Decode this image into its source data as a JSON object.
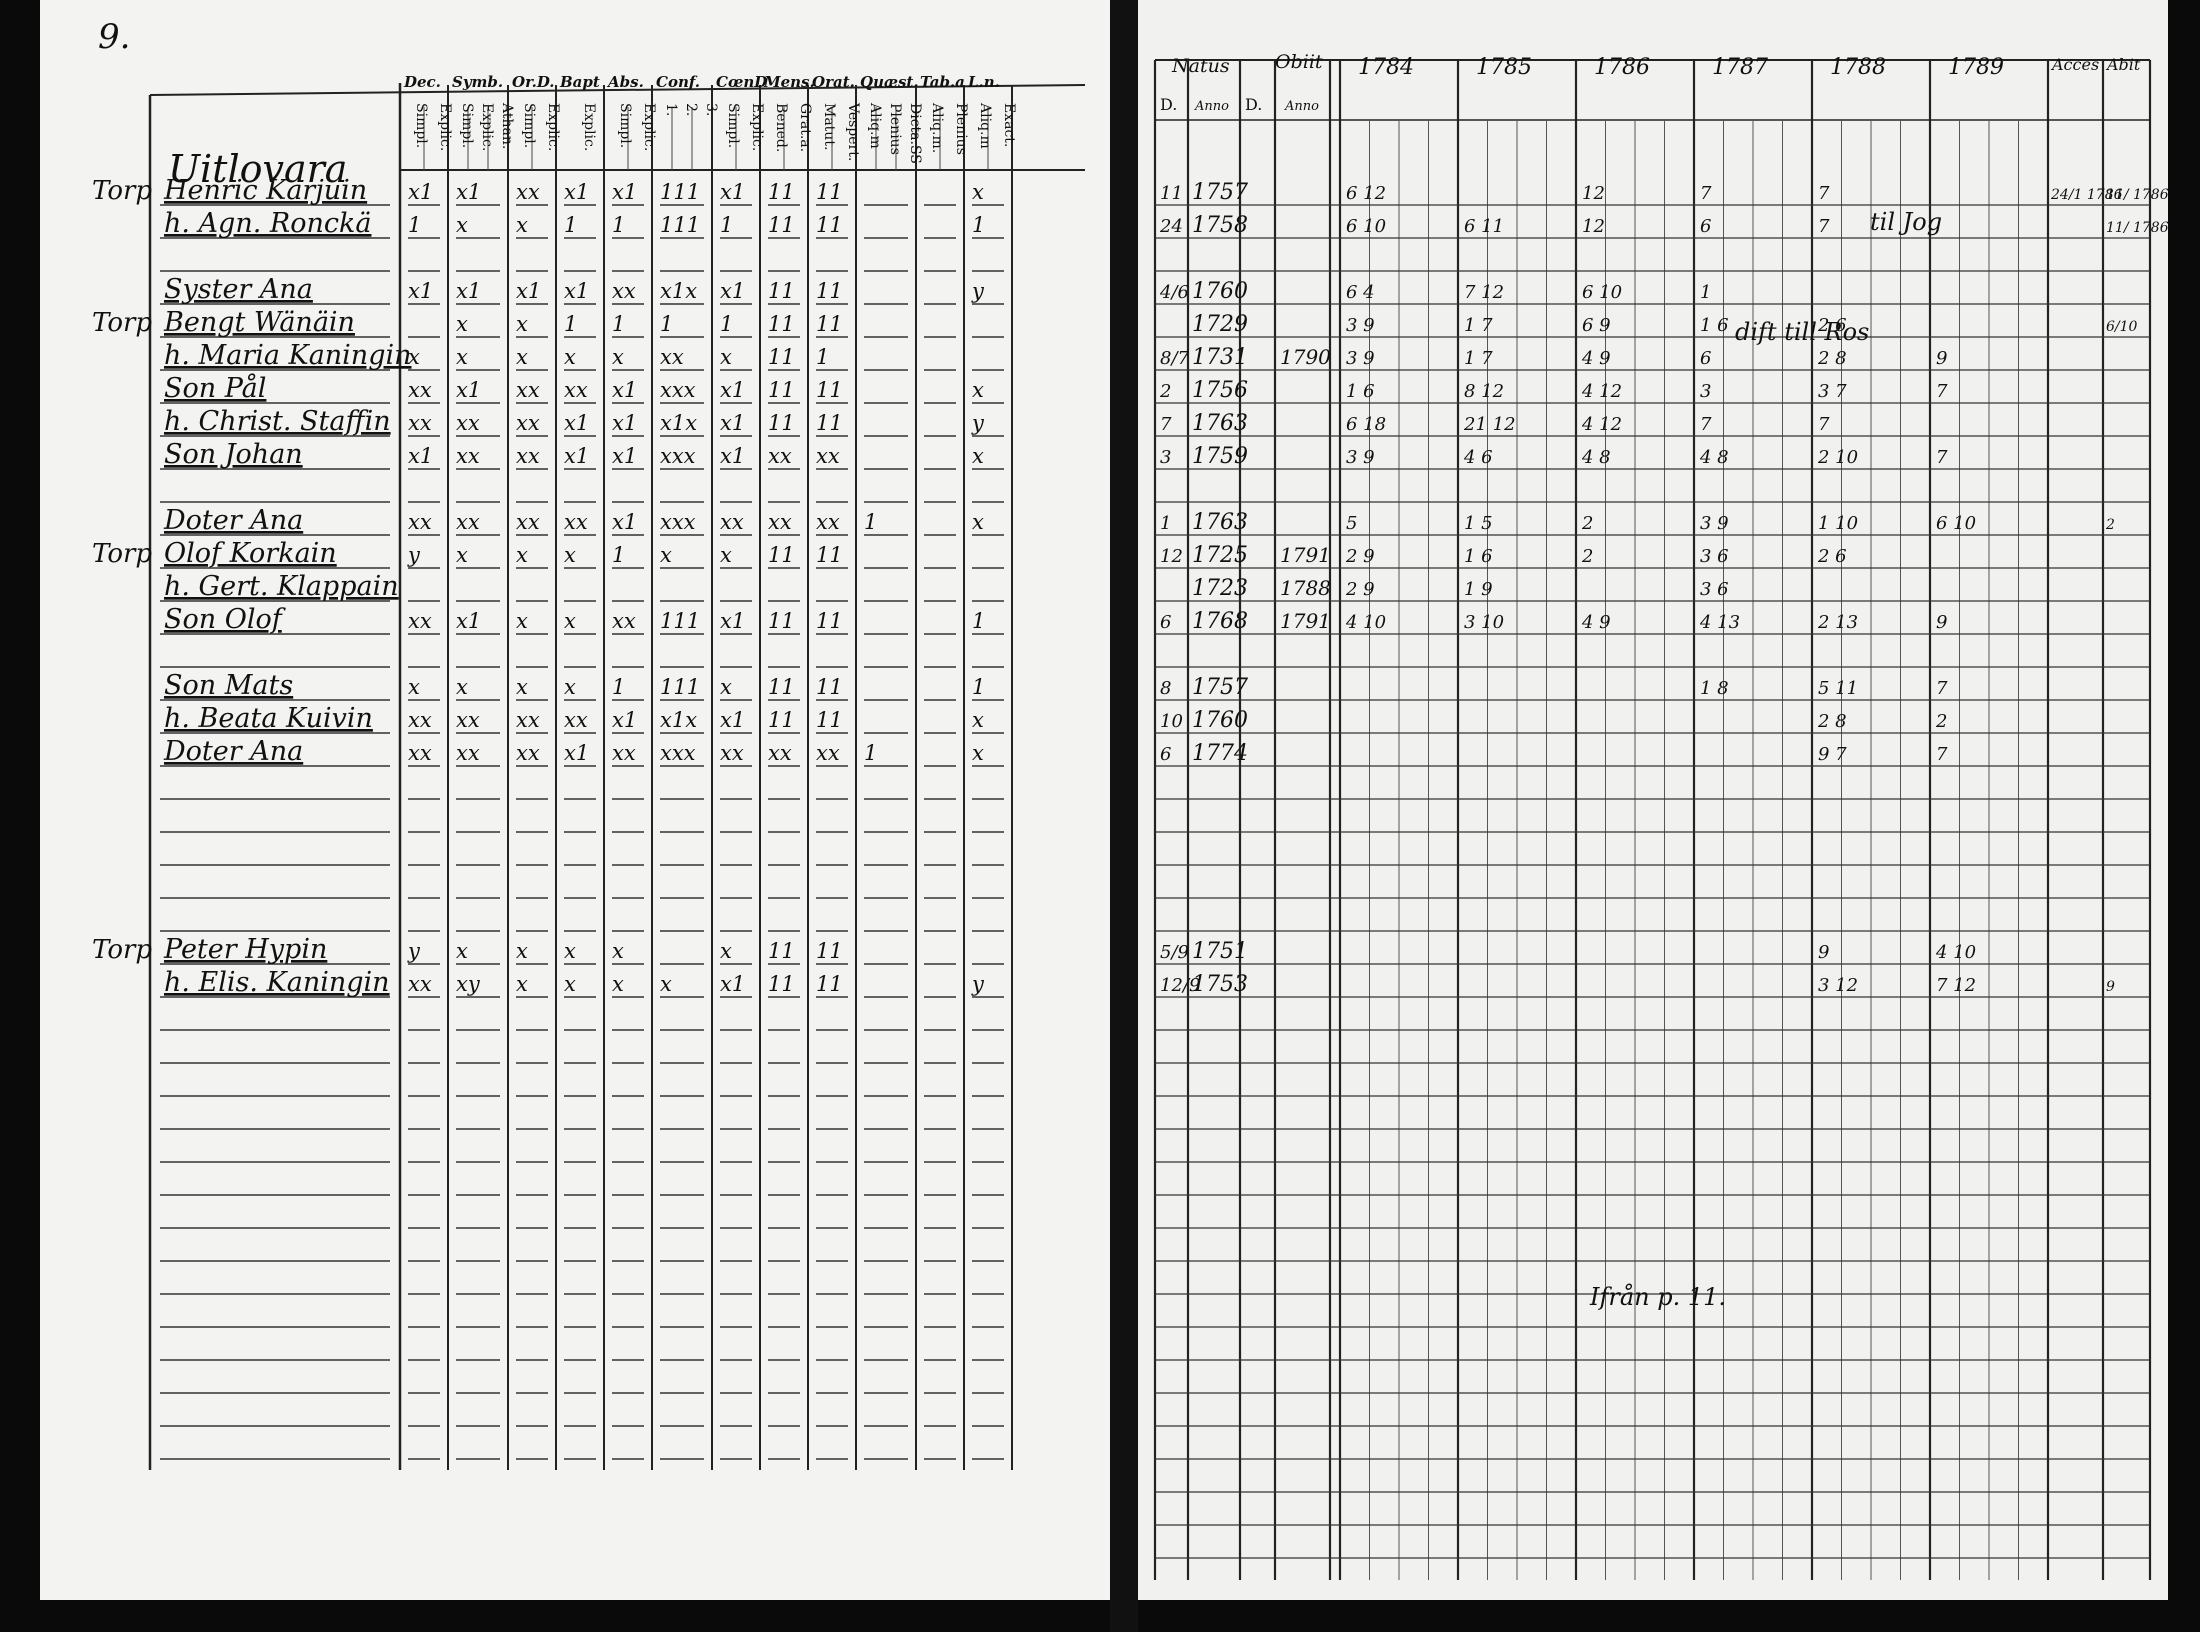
{
  "left_page": {
    "page_number": "9.",
    "village": "Uitlovara",
    "column_headers": [
      {
        "group": "Dec.",
        "subs": [
          "Simpl.",
          "Explic."
        ]
      },
      {
        "group": "Symb.",
        "subs": [
          "Simpl.",
          "Explic.",
          "Athan."
        ]
      },
      {
        "group": "Or.D.",
        "subs": [
          "Simpl.",
          "Explic."
        ]
      },
      {
        "group": "Bapt",
        "subs": [
          "Explic."
        ]
      },
      {
        "group": "Abs.",
        "subs": [
          "Simpl.",
          "Explic."
        ]
      },
      {
        "group": "Conf.",
        "subs": [
          "1.",
          "2.",
          "3."
        ]
      },
      {
        "group": "CœnD",
        "subs": [
          "Simpl.",
          "Explic."
        ]
      },
      {
        "group": "Mens.",
        "subs": [
          "Bened.",
          "Grat.a."
        ]
      },
      {
        "group": "Orat.",
        "subs": [
          "Matut.",
          "Vespert."
        ]
      },
      {
        "group": "Quæst.",
        "subs": [
          "Aliq.m",
          "Plenius",
          "Dicta.SS"
        ]
      },
      {
        "group": "Tab.a",
        "subs": [
          "Aliq.m.",
          "Plenius"
        ]
      },
      {
        "group": "L.n.",
        "subs": [
          "Aliq.m",
          "Exact."
        ]
      }
    ],
    "entries": [
      {
        "prefix": "Torp",
        "name": "Henric Karjuin",
        "marks": [
          "x1",
          "x1",
          "xx",
          "x1",
          "x1",
          "111",
          "x1",
          "11",
          "11",
          "",
          "",
          "x"
        ]
      },
      {
        "prefix": "",
        "name": "h. Agn. Ronckä",
        "marks": [
          "1",
          "x",
          "x",
          "1",
          "1",
          "111",
          "1",
          "11",
          "11",
          "",
          "",
          "1"
        ]
      },
      {
        "prefix": "",
        "name": "Syster Ana",
        "marks": [
          "x1",
          "x1",
          "x1",
          "x1",
          "xx",
          "x1x",
          "x1",
          "11",
          "11",
          "",
          "",
          "y"
        ]
      },
      {
        "prefix": "Torp",
        "name": "Bengt Wänäin",
        "marks": [
          "",
          "x",
          "x",
          "1",
          "1",
          "1",
          "1",
          "11",
          "11",
          "",
          "",
          ""
        ]
      },
      {
        "prefix": "",
        "name": "h. Maria Kaningin",
        "marks": [
          "x",
          "x",
          "x",
          "x",
          "x",
          "xx",
          "x",
          "11",
          "1",
          "",
          "",
          ""
        ]
      },
      {
        "prefix": "",
        "name": "Son Pål",
        "marks": [
          "xx",
          "x1",
          "xx",
          "xx",
          "x1",
          "xxx",
          "x1",
          "11",
          "11",
          "",
          "",
          "x"
        ]
      },
      {
        "prefix": "",
        "name": "h. Christ. Staffin",
        "marks": [
          "xx",
          "xx",
          "xx",
          "x1",
          "x1",
          "x1x",
          "x1",
          "11",
          "11",
          "",
          "",
          "y"
        ]
      },
      {
        "prefix": "",
        "name": "Son Johan",
        "marks": [
          "x1",
          "xx",
          "xx",
          "x1",
          "x1",
          "xxx",
          "x1",
          "xx",
          "xx",
          "",
          "",
          "x"
        ]
      },
      {
        "prefix": "",
        "name": "Doter Ana",
        "marks": [
          "xx",
          "xx",
          "xx",
          "xx",
          "x1",
          "xxx",
          "xx",
          "xx",
          "xx",
          "1",
          "",
          "x"
        ]
      },
      {
        "prefix": "Torp",
        "name": "Olof Korkain",
        "marks": [
          "y",
          "x",
          "x",
          "x",
          "1",
          "x",
          "x",
          "11",
          "11",
          "",
          "",
          ""
        ]
      },
      {
        "prefix": "",
        "name": "h. Gert. Klappain",
        "marks": [
          "",
          "",
          "",
          "",
          "",
          "",
          "",
          "",
          "",
          "",
          "",
          ""
        ]
      },
      {
        "prefix": "",
        "name": "Son Olof",
        "marks": [
          "xx",
          "x1",
          "x",
          "x",
          "xx",
          "111",
          "x1",
          "11",
          "11",
          "",
          "",
          "1"
        ]
      },
      {
        "prefix": "",
        "name": "Son Mats",
        "marks": [
          "x",
          "x",
          "x",
          "x",
          "1",
          "111",
          "x",
          "11",
          "11",
          "",
          "",
          "1"
        ]
      },
      {
        "prefix": "",
        "name": "h. Beata Kuivin",
        "marks": [
          "xx",
          "xx",
          "xx",
          "xx",
          "x1",
          "x1x",
          "x1",
          "11",
          "11",
          "",
          "",
          "x"
        ]
      },
      {
        "prefix": "",
        "name": "Doter Ana",
        "marks": [
          "xx",
          "xx",
          "xx",
          "x1",
          "xx",
          "xxx",
          "xx",
          "xx",
          "xx",
          "1",
          "",
          "x"
        ]
      },
      {
        "prefix": "Torp",
        "name": "Peter Hypin",
        "marks": [
          "y",
          "x",
          "x",
          "x",
          "x",
          "",
          "x",
          "11",
          "11",
          "",
          "",
          ""
        ]
      },
      {
        "prefix": "",
        "name": "h. Elis. Kaningin",
        "marks": [
          "xx",
          "xy",
          "x",
          "x",
          "x",
          "x",
          "x1",
          "11",
          "11",
          "",
          "",
          "y"
        ]
      }
    ]
  },
  "right_page": {
    "headers": {
      "natus": "Natus",
      "natus_day": "D.",
      "natus_year": "Anno",
      "obiit": "Obiit",
      "obiit_day": "D.",
      "obiit_year": "Anno",
      "years": [
        "1784",
        "1785",
        "1786",
        "1787",
        "1788",
        "1789"
      ],
      "accessit": "Acces",
      "abiit": "Abit"
    },
    "entries": [
      {
        "natus_day": "11",
        "natus_year": "1757",
        "obiit_year": "",
        "y1784": "6 12",
        "y1785": "",
        "y1786": "12",
        "y1787": "7",
        "y1788": "7",
        "y1789": "",
        "acces": "24/1 1786",
        "abit": "11/ 1786"
      },
      {
        "natus_day": "24",
        "natus_year": "1758",
        "obiit_year": "",
        "y1784": "6 10",
        "y1785": "6 11",
        "y1786": "12",
        "y1787": "6",
        "y1788": "7",
        "y1789": "",
        "acces": "",
        "abit": "11/ 1786"
      },
      {
        "natus_day": "4/6",
        "natus_year": "1760",
        "obiit_year": "",
        "y1784": "6 4",
        "y1785": "7 12",
        "y1786": "6 10",
        "y1787": "1",
        "y1788": "",
        "y1789": "",
        "acces": "",
        "abit": ""
      },
      {
        "natus_day": "",
        "natus_year": "1729",
        "obiit_year": "",
        "y1784": "3 9",
        "y1785": "1 7",
        "y1786": "6 9",
        "y1787": "1 6",
        "y1788": "2 6",
        "y1789": "",
        "acces": "",
        "abit": "6/10"
      },
      {
        "natus_day": "8/7",
        "natus_year": "1731",
        "obiit_year": "1790",
        "y1784": "3 9",
        "y1785": "1 7",
        "y1786": "4 9",
        "y1787": "6",
        "y1788": "2 8",
        "y1789": "9",
        "acces": "",
        "abit": ""
      },
      {
        "natus_day": "2",
        "natus_year": "1756",
        "obiit_year": "",
        "y1784": "1 6",
        "y1785": "8 12",
        "y1786": "4 12",
        "y1787": "3",
        "y1788": "3 7",
        "y1789": "7",
        "acces": "",
        "abit": ""
      },
      {
        "natus_day": "7",
        "natus_year": "1763",
        "obiit_year": "",
        "y1784": "6 18",
        "y1785": "21 12",
        "y1786": "4 12",
        "y1787": "7",
        "y1788": "7",
        "y1789": "",
        "acces": "",
        "abit": ""
      },
      {
        "natus_day": "3",
        "natus_year": "1759",
        "obiit_year": "",
        "y1784": "3 9",
        "y1785": "4 6",
        "y1786": "4 8",
        "y1787": "4 8",
        "y1788": "2 10",
        "y1789": "7",
        "acces": "",
        "abit": ""
      },
      {
        "natus_day": "1",
        "natus_year": "1763",
        "obiit_year": "",
        "y1784": "5",
        "y1785": "1 5",
        "y1786": "2",
        "y1787": "3 9",
        "y1788": "1 10",
        "y1789": "6 10",
        "acces": "",
        "abit": "2"
      },
      {
        "natus_day": "12",
        "natus_year": "1725",
        "obiit_year": "1791",
        "y1784": "2 9",
        "y1785": "1 6",
        "y1786": "2",
        "y1787": "3 6",
        "y1788": "2 6",
        "y1789": "",
        "acces": "",
        "abit": ""
      },
      {
        "natus_day": "",
        "natus_year": "1723",
        "obiit_year": "1788",
        "y1784": "2 9",
        "y1785": "1 9",
        "y1786": "",
        "y1787": "3 6",
        "y1788": "",
        "y1789": "",
        "acces": "",
        "abit": ""
      },
      {
        "natus_day": "6",
        "natus_year": "1768",
        "obiit_year": "1791",
        "y1784": "4 10",
        "y1785": "3 10",
        "y1786": "4 9",
        "y1787": "4 13",
        "y1788": "2 13",
        "y1789": "9",
        "acces": "",
        "abit": ""
      },
      {
        "natus_day": "8",
        "natus_year": "1757",
        "obiit_year": "",
        "y1784": "",
        "y1785": "",
        "y1786": "",
        "y1787": "1 8",
        "y1788": "5 11",
        "y1789": "7",
        "acces": "",
        "abit": ""
      },
      {
        "natus_day": "10",
        "natus_year": "1760",
        "obiit_year": "",
        "y1784": "",
        "y1785": "",
        "y1786": "",
        "y1787": "",
        "y1788": "2 8",
        "y1789": "2",
        "acces": "",
        "abit": ""
      },
      {
        "natus_day": "6",
        "natus_year": "1774",
        "obiit_year": "",
        "y1784": "",
        "y1785": "",
        "y1786": "",
        "y1787": "",
        "y1788": "9 7",
        "y1789": "7",
        "acces": "",
        "abit": ""
      },
      {
        "natus_day": "5/9",
        "natus_year": "1751",
        "obiit_year": "",
        "y1784": "",
        "y1785": "",
        "y1786": "",
        "y1787": "",
        "y1788": "9",
        "y1789": "4 10",
        "acces": "",
        "abit": ""
      },
      {
        "natus_day": "12/9",
        "natus_year": "1753",
        "obiit_year": "",
        "y1784": "",
        "y1785": "",
        "y1786": "",
        "y1787": "",
        "y1788": "3 12",
        "y1789": "7 12",
        "acces": "",
        "abit": "9"
      }
    ],
    "margin_notes": [
      "dift till Ros",
      "til Jog",
      "Ifrån p. 11."
    ]
  }
}
